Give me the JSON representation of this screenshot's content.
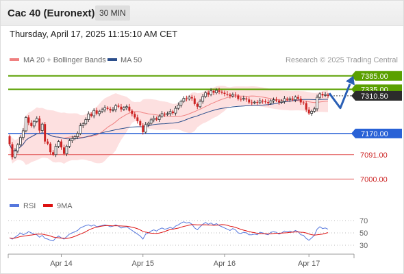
{
  "header": {
    "title": "Cac 40 (Euronext)",
    "interval": "30 MIN"
  },
  "timestamp": "Thursday, April 17, 2025 11:15:10 AM CET",
  "legend": {
    "ma20_label": "MA 20 + Bollinger Bands",
    "ma50_label": "MA 50",
    "ma20_color": "#f08080",
    "ma50_color": "#2c4f8c",
    "credit": "Research © 2025 Trading Central"
  },
  "rsi_legend": {
    "rsi_label": "RSI",
    "ma_label": "9MA",
    "rsi_color": "#5577dd",
    "ma_color": "#dd1111"
  },
  "chart_data": [
    {
      "type": "candlestick",
      "instrument": "Cac 40 (Euronext)",
      "interval": "30 MIN",
      "x_labels": [
        "Apr 14",
        "Apr 15",
        "Apr 16",
        "Apr 17"
      ],
      "ylim": [
        6960,
        7410
      ],
      "levels": [
        {
          "value": 7385.0,
          "label": "7385.00",
          "color": "#5aa000",
          "kind": "resistance"
        },
        {
          "value": 7335.0,
          "label": "7335.00",
          "color": "#5aa000",
          "kind": "resistance"
        },
        {
          "value": 7310.5,
          "label": "7310.50",
          "color": "#222222",
          "kind": "last"
        },
        {
          "value": 7170.0,
          "label": "7170.00",
          "color": "#2962d6",
          "kind": "pivot"
        },
        {
          "value": 7091.0,
          "label": "7091.00",
          "color": "#e05050",
          "kind": "support"
        },
        {
          "value": 7000.0,
          "label": "7000.00",
          "color": "#e05050",
          "kind": "support"
        }
      ],
      "forecast_path": [
        7320,
        7265,
        7370
      ],
      "close": [
        7130,
        7082,
        7105,
        7128,
        7155,
        7180,
        7230,
        7210,
        7198,
        7215,
        7226,
        7181,
        7205,
        7140,
        7132,
        7100,
        7091,
        7122,
        7140,
        7118,
        7094,
        7122,
        7143,
        7151,
        7158,
        7170,
        7199,
        7206,
        7222,
        7243,
        7236,
        7256,
        7244,
        7252,
        7258,
        7266,
        7262,
        7256,
        7259,
        7274,
        7270,
        7260,
        7266,
        7270,
        7255,
        7243,
        7230,
        7216,
        7200,
        7175,
        7203,
        7208,
        7221,
        7227,
        7222,
        7234,
        7244,
        7241,
        7244,
        7252,
        7246,
        7264,
        7276,
        7290,
        7301,
        7299,
        7306,
        7301,
        7280,
        7270,
        7290,
        7308,
        7322,
        7315,
        7329,
        7322,
        7331,
        7326,
        7322,
        7318,
        7315,
        7310,
        7315,
        7312,
        7299,
        7298,
        7301,
        7297,
        7286,
        7285,
        7287,
        7285,
        7292,
        7290,
        7287,
        7283,
        7292,
        7296,
        7293,
        7286,
        7290,
        7300,
        7296,
        7300,
        7296,
        7306,
        7300,
        7286,
        7283,
        7259,
        7245,
        7253,
        7262,
        7305,
        7318,
        7312,
        7315,
        7310.5
      ],
      "rsi": {
        "ylim": [
          20,
          80
        ],
        "levels": [
          70,
          50,
          30
        ],
        "values": [
          42,
          40,
          43,
          46,
          50,
          47,
          49,
          52,
          50,
          48,
          47,
          43,
          46,
          41,
          40,
          38,
          37,
          42,
          45,
          42,
          40,
          44,
          48,
          50,
          52,
          54,
          58,
          60,
          62,
          63,
          61,
          63,
          60,
          61,
          62,
          63,
          62,
          60,
          61,
          63,
          61,
          58,
          59,
          60,
          57,
          54,
          51,
          48,
          45,
          40,
          48,
          50,
          53,
          55,
          53,
          56,
          58,
          56,
          57,
          59,
          57,
          61,
          63,
          66,
          68,
          66,
          67,
          64,
          58,
          55,
          60,
          64,
          67,
          64,
          66,
          63,
          65,
          62,
          60,
          58,
          56,
          54,
          57,
          55,
          50,
          49,
          51,
          50,
          47,
          47,
          48,
          47,
          51,
          50,
          48,
          47,
          51,
          52,
          51,
          48,
          50,
          53,
          52,
          53,
          51,
          54,
          52,
          47,
          46,
          41,
          38,
          42,
          46,
          56,
          60,
          57,
          58,
          56
        ]
      }
    }
  ]
}
